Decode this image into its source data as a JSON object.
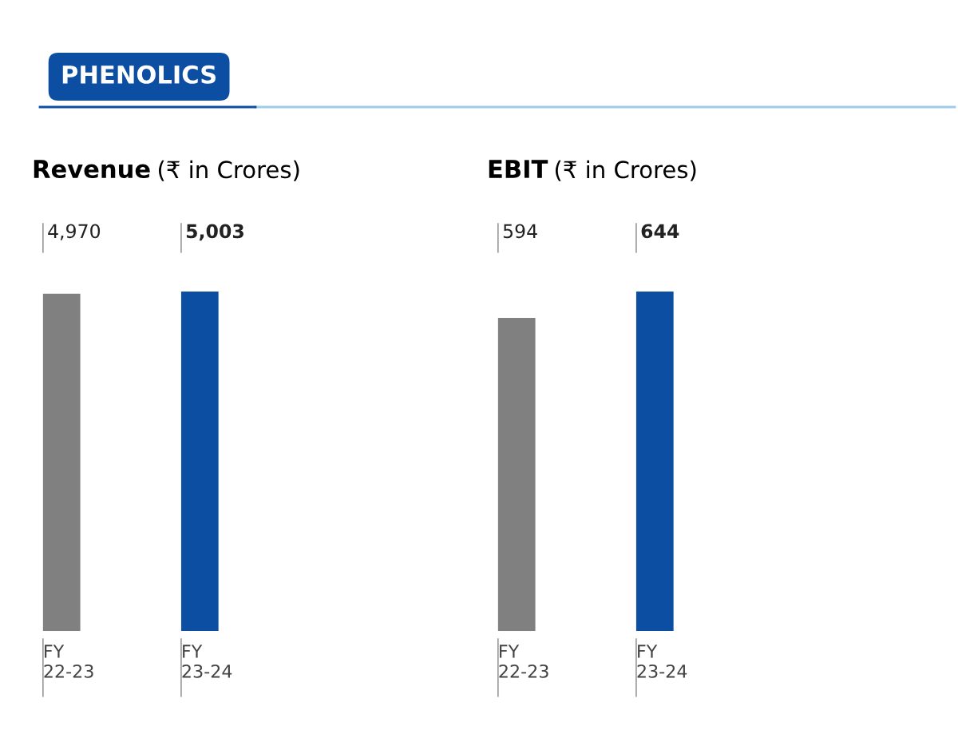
{
  "chart_data": [
    {
      "type": "bar",
      "title": "Revenue",
      "subtitle": "(₹ in Crores)",
      "annotations": [
        "PHENOLICS"
      ],
      "categories": [
        "FY\n22-23",
        "FY\n23-24"
      ],
      "values": [
        4970,
        5003
      ],
      "colors": [
        "#808080",
        "#0b4ea2"
      ],
      "value_labels": [
        "4,970",
        "5,003"
      ],
      "grid": false,
      "legend": false
    },
    {
      "type": "bar",
      "title": "EBIT",
      "subtitle": "(₹ in Crores)",
      "categories": [
        "FY\n22-23",
        "FY\n23-24"
      ],
      "values": [
        594,
        644
      ],
      "colors": [
        "#808080",
        "#0b4ea2"
      ],
      "value_labels": [
        "594",
        "644"
      ],
      "grid": false,
      "legend": false
    }
  ]
}
